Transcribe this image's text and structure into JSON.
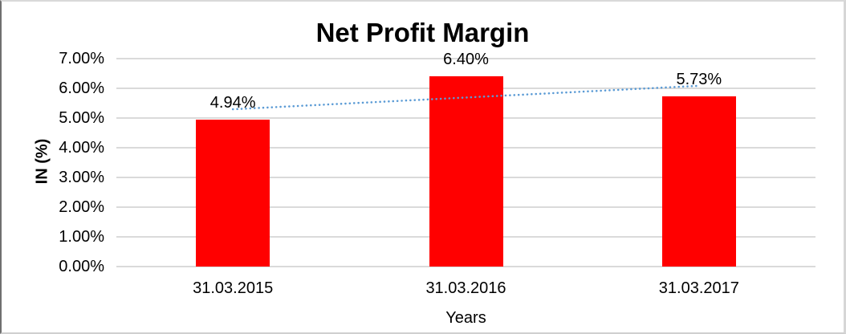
{
  "chart_data": {
    "type": "bar",
    "title": "Net Profit Margin",
    "xlabel": "Years",
    "ylabel": "IN (%)",
    "categories": [
      "31.03.2015",
      "31.03.2016",
      "31.03.2017"
    ],
    "values": [
      4.94,
      6.4,
      5.73
    ],
    "data_labels": [
      "4.94%",
      "6.40%",
      "5.73%"
    ],
    "ylim": [
      0,
      7
    ],
    "yticks": [
      {
        "value": 0,
        "label": "0.00%"
      },
      {
        "value": 1,
        "label": "1.00%"
      },
      {
        "value": 2,
        "label": "2.00%"
      },
      {
        "value": 3,
        "label": "3.00%"
      },
      {
        "value": 4,
        "label": "4.00%"
      },
      {
        "value": 5,
        "label": "5.00%"
      },
      {
        "value": 6,
        "label": "6.00%"
      },
      {
        "value": 7,
        "label": "7.00%"
      },
      {
        "value": 8,
        "label": ""
      }
    ],
    "grid": true,
    "legend": "none",
    "bar_color": "#ff0000",
    "gridline_color": "#dadada",
    "trendline": {
      "type": "linear",
      "style": "dotted",
      "color": "#5b9bd5"
    }
  }
}
